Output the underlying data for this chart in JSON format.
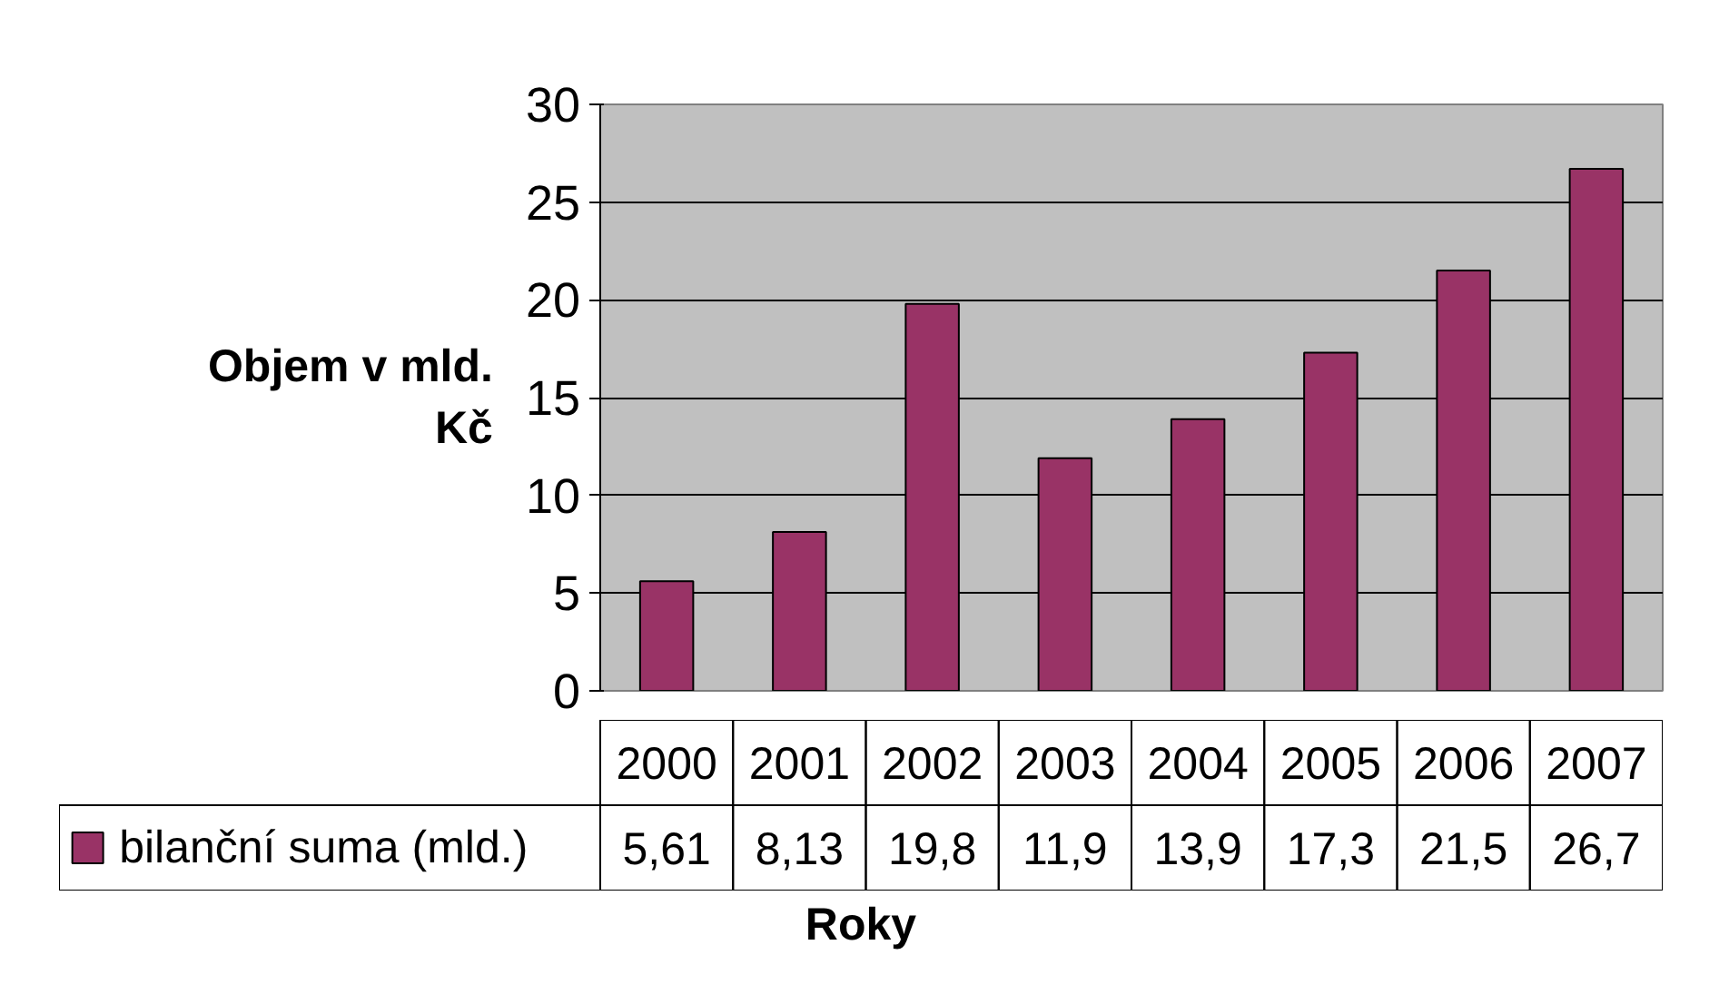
{
  "chart_data": {
    "type": "bar",
    "xlabel": "Roky",
    "ylabel": "Objem v mld. Kč",
    "categories": [
      "2000",
      "2001",
      "2002",
      "2003",
      "2004",
      "2005",
      "2006",
      "2007"
    ],
    "series": [
      {
        "name": "bilanční suma (mld.)",
        "color": "#993366",
        "values": [
          5.61,
          8.13,
          19.8,
          11.9,
          13.9,
          17.3,
          21.5,
          26.7
        ],
        "value_labels": [
          "5,61",
          "8,13",
          "19,8",
          "11,9",
          "13,9",
          "17,3",
          "21,5",
          "26,7"
        ]
      }
    ],
    "ylim": [
      0,
      30
    ],
    "yticks": [
      0,
      5,
      10,
      15,
      20,
      25,
      30
    ],
    "grid": "y",
    "legend": "bottom"
  }
}
